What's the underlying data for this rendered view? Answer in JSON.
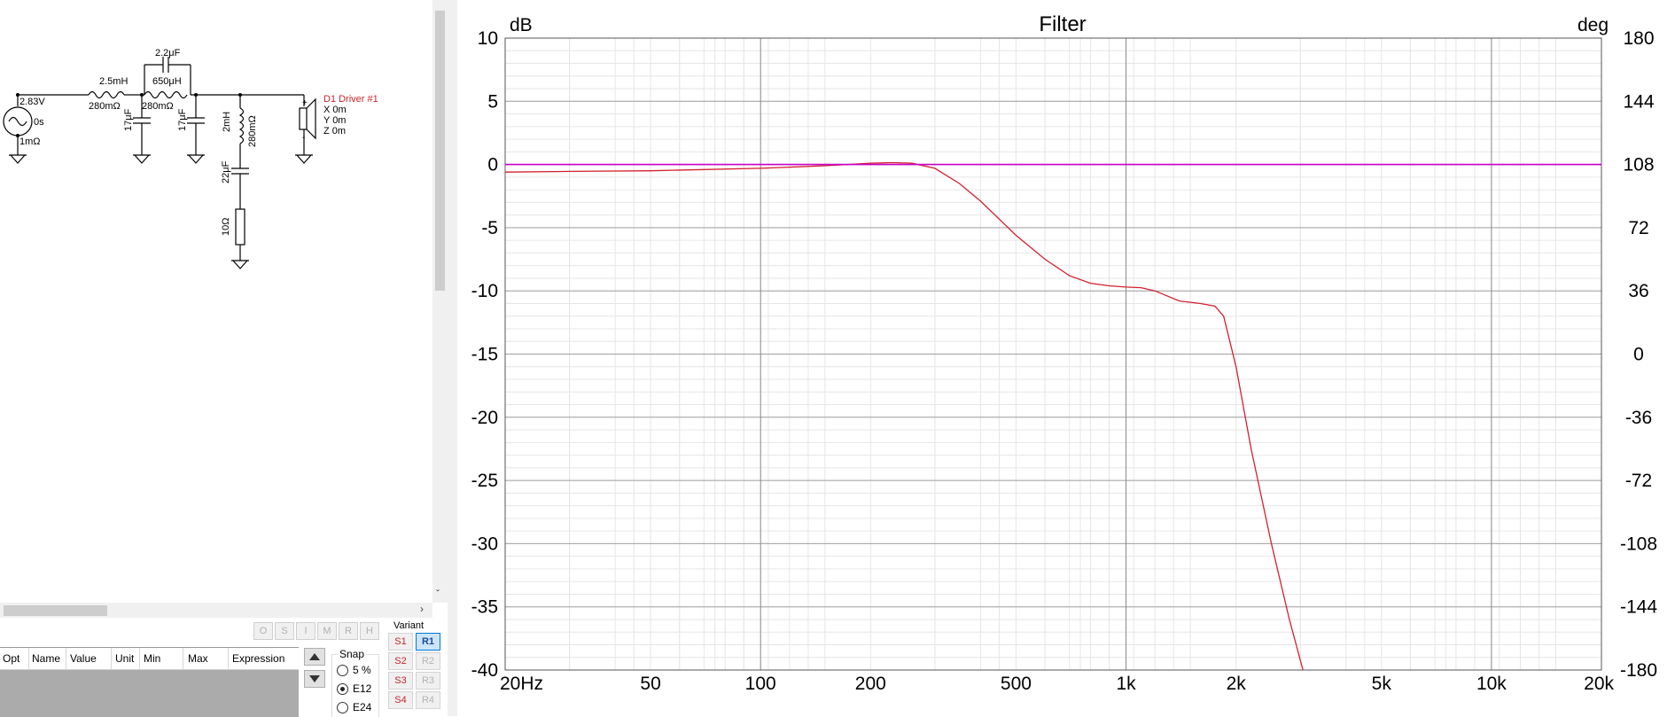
{
  "schematic": {
    "source": {
      "voltage": "2.83V",
      "delay": "0s",
      "resistance": "1mΩ"
    },
    "l1": {
      "inductance": "2.5mH",
      "resistance": "280mΩ"
    },
    "c_top": {
      "value": "2.2μF"
    },
    "l2": {
      "inductance": "650μH",
      "resistance": "280mΩ"
    },
    "c1": {
      "value": "17μF"
    },
    "c2": {
      "value": "17μF"
    },
    "l3": {
      "inductance": "2mH",
      "resistance": "280mΩ"
    },
    "c3": {
      "value": "22μF"
    },
    "r1": {
      "value": "10Ω"
    },
    "driver": {
      "name": "D1 Driver #1",
      "x": "X 0m",
      "y": "Y 0m",
      "z": "Z 0m",
      "plus": "+",
      "minus": "-"
    }
  },
  "toolbar": {
    "buttons": [
      "O",
      "S",
      "I",
      "M",
      "R",
      "H"
    ]
  },
  "table": {
    "columns": [
      "Opt",
      "Name",
      "Value",
      "Unit",
      "Min",
      "Max",
      "Expression"
    ]
  },
  "snap": {
    "title": "Snap",
    "options": [
      "5 %",
      "E12",
      "E24"
    ],
    "selected": 1
  },
  "variant": {
    "title": "Variant",
    "s_buttons": [
      "S1",
      "S2",
      "S3",
      "S4"
    ],
    "r_buttons": [
      "R1",
      "R2",
      "R3",
      "R4"
    ],
    "active": "R1"
  },
  "chart_data": {
    "type": "line",
    "title": "Filter",
    "ylabel": "dB",
    "y2label": "deg",
    "xscale": "log",
    "xlim": [
      20,
      20000
    ],
    "ylim": [
      -40,
      10
    ],
    "y2lim": [
      -180,
      180
    ],
    "x_ticks": [
      20,
      50,
      100,
      200,
      500,
      1000,
      2000,
      5000,
      10000,
      20000
    ],
    "x_tick_labels": [
      "20Hz",
      "50",
      "100",
      "200",
      "500",
      "1k",
      "2k",
      "5k",
      "10k",
      "20k"
    ],
    "y_ticks": [
      10,
      5,
      0,
      -5,
      -10,
      -15,
      -20,
      -25,
      -30,
      -35,
      -40
    ],
    "y_tick_labels": [
      "10",
      "5",
      "0",
      "-5",
      "-10",
      "-15",
      "-20",
      "-25",
      "-30",
      "-35",
      "-40"
    ],
    "y2_tick_labels": [
      "180",
      "144",
      "108",
      "72",
      "36",
      "0",
      "-36",
      "-72",
      "-108",
      "-144",
      "-180"
    ],
    "grid": true,
    "series": [
      {
        "color": "#d2202f",
        "x": [
          20,
          30,
          50,
          70,
          100,
          150,
          200,
          230,
          260,
          300,
          350,
          400,
          500,
          600,
          700,
          800,
          900,
          1000,
          1100,
          1200,
          1400,
          1600,
          1750,
          1850,
          2000,
          2200,
          2500,
          2800,
          3050
        ],
        "y": [
          -0.6,
          -0.55,
          -0.5,
          -0.4,
          -0.3,
          -0.1,
          0.1,
          0.15,
          0.1,
          -0.3,
          -1.5,
          -2.9,
          -5.6,
          -7.5,
          -8.8,
          -9.4,
          -9.6,
          -9.7,
          -9.75,
          -10.0,
          -10.8,
          -11.0,
          -11.2,
          -12.0,
          -16.0,
          -22.5,
          -30.0,
          -36.0,
          -40.0
        ]
      },
      {
        "color": "#c800c8",
        "x": [
          20,
          20000
        ],
        "y": [
          0,
          0
        ]
      }
    ]
  }
}
